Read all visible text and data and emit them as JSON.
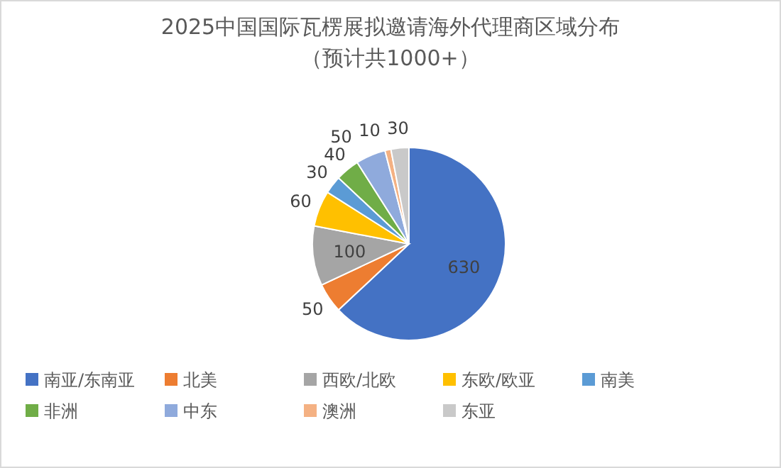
{
  "chart_data": {
    "type": "pie",
    "title": "2025中国国际瓦楞展拟邀请海外代理商区域分布",
    "subtitle": "（预计共1000+）",
    "categories": [
      "南亚/东南亚",
      "北美",
      "西欧/北欧",
      "东欧/欧亚",
      "南美",
      "非洲",
      "中东",
      "澳洲",
      "东亚"
    ],
    "values": [
      630,
      50,
      100,
      60,
      30,
      40,
      50,
      10,
      30
    ],
    "colors": [
      "#4472c4",
      "#ed7d31",
      "#a5a5a5",
      "#ffc000",
      "#5b9bd5",
      "#70ad47",
      "#8faadc",
      "#f4b183",
      "#c9c9c9"
    ],
    "data_labels": true,
    "legend": "bottom"
  }
}
